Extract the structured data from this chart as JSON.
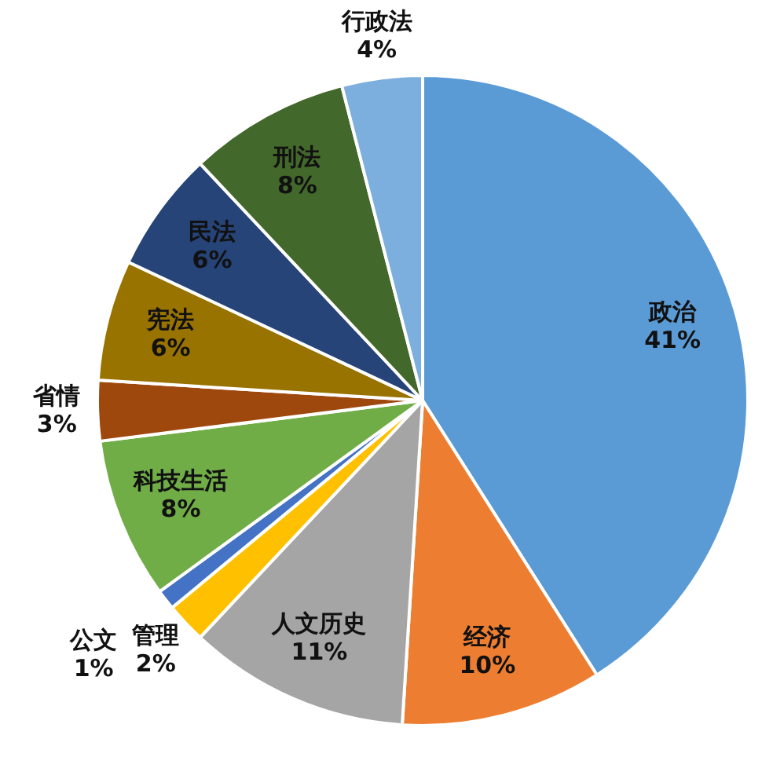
{
  "chart_data": {
    "type": "pie",
    "categories": [
      "政治",
      "经济",
      "人文历史",
      "管理",
      "公文",
      "科技生活",
      "省情",
      "宪法",
      "民法",
      "刑法",
      "行政法"
    ],
    "values": [
      41,
      10,
      11,
      2,
      1,
      8,
      3,
      6,
      6,
      8,
      4
    ],
    "colors": [
      "#5b9bd5",
      "#ed7d31",
      "#a5a5a5",
      "#ffc000",
      "#4472c4",
      "#70ad47",
      "#9e480e",
      "#997300",
      "#264478",
      "#43682b",
      "#7cafdd"
    ],
    "value_labels": [
      "41%",
      "10%",
      "11%",
      "2%",
      "1%",
      "8%",
      "3%",
      "6%",
      "6%",
      "8%",
      "4%"
    ]
  }
}
